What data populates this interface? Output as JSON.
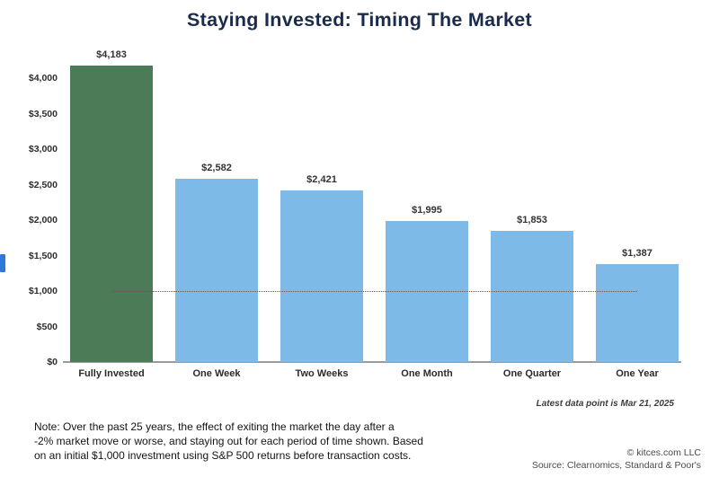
{
  "chart_data": {
    "type": "bar",
    "title": "Staying Invested: Timing The Market",
    "categories": [
      "Fully Invested",
      "One Week",
      "Two Weeks",
      "One Month",
      "One Quarter",
      "One Year"
    ],
    "values": [
      4183,
      2582,
      2421,
      1995,
      1853,
      1387
    ],
    "value_labels": [
      "$4,183",
      "$2,582",
      "$2,421",
      "$1,995",
      "$1,853",
      "$1,387"
    ],
    "bar_colors": [
      "#4b7c57",
      "#7dbae8",
      "#7dbae8",
      "#7dbae8",
      "#7dbae8",
      "#7dbae8"
    ],
    "xlabel": "",
    "ylabel": "",
    "ylim": [
      0,
      4000
    ],
    "ytick_step": 500,
    "ytick_labels": [
      "$0",
      "$500",
      "$1,000",
      "$1,500",
      "$2,000",
      "$2,500",
      "$3,000",
      "$3,500",
      "$4,000"
    ],
    "reference_line": {
      "value": 1000,
      "style": "dotted"
    },
    "grid": false,
    "legend": null
  },
  "annotations": {
    "latest_data_point": "Latest data point is Mar 21, 2025",
    "note_lines": [
      "Note: Over the past 25 years, the effect of exiting the market the day after a",
      "-2% market move or worse, and staying out for each period of time shown. Based",
      "on an initial $1,000 investment using S&P 500 returns before transaction costs."
    ],
    "copyright": "© kitces.com LLC",
    "source": "Source: Clearnomics, Standard & Poor's"
  },
  "colors": {
    "title_navy": "#1a2b4c",
    "fully_invested_green": "#4b7c57",
    "timing_blue": "#7dbae8",
    "axis_gray": "#9b9b9b",
    "reference_line_gray": "#5a5a5a",
    "edge_marker_blue": "#2e78dc"
  }
}
